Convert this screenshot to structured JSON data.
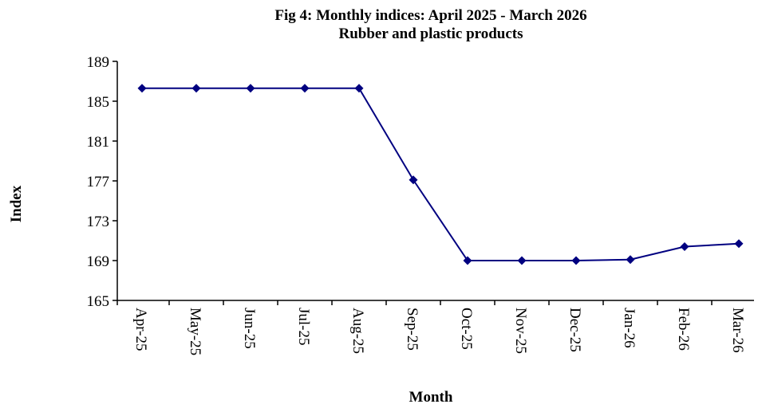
{
  "chart_data": {
    "type": "line",
    "title": "Fig 4: Monthly indices: April 2025 - March 2026",
    "subtitle": "Rubber and plastic products",
    "x_label": "Month",
    "y_label": "Index",
    "categories": [
      "Apr-25",
      "May-25",
      "Jun-25",
      "Jul-25",
      "Aug-25",
      "Sep-25",
      "Oct-25",
      "Nov-25",
      "Dec-25",
      "Jan-26",
      "Feb-26",
      "Mar-26"
    ],
    "series": [
      {
        "name": "Rubber and plastic products",
        "color": "#000080",
        "values": [
          186.3,
          186.3,
          186.3,
          186.3,
          186.3,
          177.1,
          169.0,
          169.0,
          169.0,
          169.1,
          170.4,
          170.7
        ]
      }
    ],
    "ylim": [
      165,
      189
    ],
    "yticks": [
      165,
      169,
      173,
      177,
      181,
      185,
      189
    ]
  }
}
